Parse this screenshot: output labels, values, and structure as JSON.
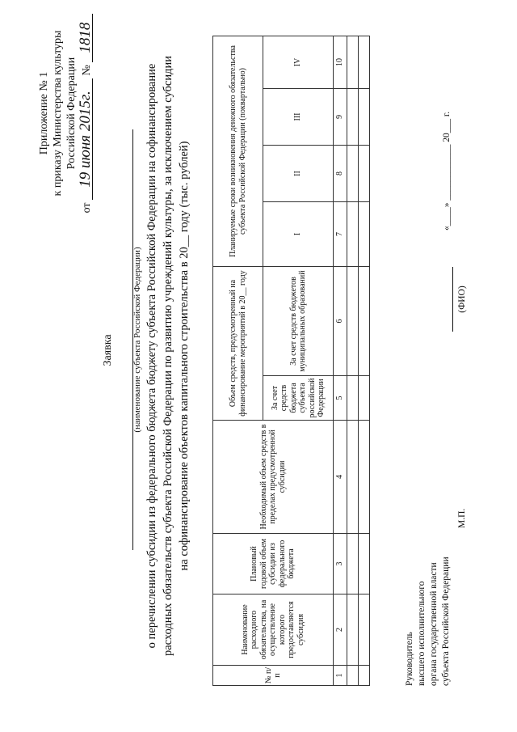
{
  "appendix": {
    "line1": "Приложение № 1",
    "line2": "к приказу Министерства культуры",
    "line3": "Российской Федерации",
    "from_label": "от",
    "date_handwritten": "19 июня 2015г.",
    "number_label": "№",
    "number_handwritten": "1818"
  },
  "title": "Заявка",
  "subject_caption": "(наименование субъекта Российской Федерации)",
  "body": {
    "line1": "о перечислении субсидии из федерального бюджета бюджету субъекта Российской Федерации на софинансирование",
    "line2": "расходных обязательств субъекта Российской Федерации по развитию учреждений культуры, за исключением субсидии",
    "line3": "на софинансирование объектов капитального строительства в 20__ году (тыс. рублей)"
  },
  "table": {
    "col1": "№ п/п",
    "col2": "Наименование расходного обязательства, на осуществление которого предоставляется субсидия",
    "col3": "Плановый годовой объем субсидии из федерального бюджета",
    "col4": "Необходимый объем средств в пределах предусмотренной субсидии",
    "group_funds": "Объем средств, предусмотренный на финансирование мероприятий в 20__ году",
    "col5": "За счет средств бюджета субъекта российской Федерации",
    "col6": "За счет средств бюджетов муниципальных образований",
    "group_terms": "Планируемые сроки возникновения денежного обязательства субъекта Российской Федерации (поквартально)",
    "col7": "I",
    "col8": "II",
    "col9": "III",
    "col10": "IV",
    "numbers": [
      "1",
      "2",
      "3",
      "4",
      "5",
      "6",
      "7",
      "8",
      "9",
      "10"
    ]
  },
  "footer": {
    "signer1": "Руководитель",
    "signer2": "высшего исполнительного",
    "signer3": "органа государственной власти",
    "signer4": "субъекта Российской Федерации",
    "stamp": "М.П.",
    "fio": "(ФИО)",
    "date": "«____» ____________ 20___ г."
  }
}
